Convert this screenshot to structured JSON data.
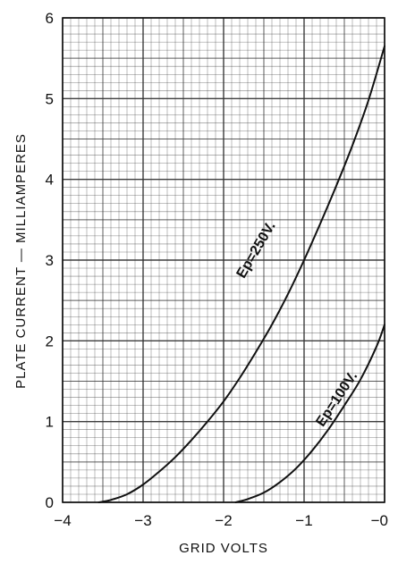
{
  "chart_data": {
    "type": "line",
    "title": "",
    "xlabel": "GRID VOLTS",
    "ylabel": "PLATE CURRENT — MILLIAMPERES",
    "xlim": [
      -4,
      0
    ],
    "ylim": [
      0,
      6
    ],
    "x_ticks": [
      {
        "value": -4,
        "label": "−4"
      },
      {
        "value": -3,
        "label": "−3"
      },
      {
        "value": -2,
        "label": "−2"
      },
      {
        "value": -1,
        "label": "−1"
      },
      {
        "value": 0,
        "label": "−0"
      }
    ],
    "y_ticks": [
      {
        "value": 0,
        "label": "0"
      },
      {
        "value": 1,
        "label": "1"
      },
      {
        "value": 2,
        "label": "2"
      },
      {
        "value": 3,
        "label": "3"
      },
      {
        "value": 4,
        "label": "4"
      },
      {
        "value": 5,
        "label": "5"
      },
      {
        "value": 6,
        "label": "6"
      }
    ],
    "grid": true,
    "grid_minor_divisions": {
      "x": 10,
      "y": 10
    },
    "series": [
      {
        "name": "Ep=250V.",
        "points": [
          [
            -3.55,
            0.0
          ],
          [
            -3.4,
            0.03
          ],
          [
            -3.2,
            0.1
          ],
          [
            -3.0,
            0.22
          ],
          [
            -2.8,
            0.38
          ],
          [
            -2.6,
            0.56
          ],
          [
            -2.4,
            0.77
          ],
          [
            -2.2,
            1.0
          ],
          [
            -2.0,
            1.25
          ],
          [
            -1.8,
            1.54
          ],
          [
            -1.6,
            1.86
          ],
          [
            -1.4,
            2.2
          ],
          [
            -1.2,
            2.58
          ],
          [
            -1.0,
            3.0
          ],
          [
            -0.8,
            3.45
          ],
          [
            -0.6,
            3.92
          ],
          [
            -0.4,
            4.42
          ],
          [
            -0.2,
            4.98
          ],
          [
            0.0,
            5.65
          ]
        ]
      },
      {
        "name": "Ep=100V.",
        "points": [
          [
            -1.85,
            0.0
          ],
          [
            -1.7,
            0.04
          ],
          [
            -1.5,
            0.12
          ],
          [
            -1.3,
            0.25
          ],
          [
            -1.1,
            0.42
          ],
          [
            -0.9,
            0.64
          ],
          [
            -0.7,
            0.9
          ],
          [
            -0.5,
            1.2
          ],
          [
            -0.3,
            1.52
          ],
          [
            -0.1,
            1.93
          ],
          [
            0.0,
            2.2
          ]
        ]
      }
    ],
    "curve_labels": [
      {
        "series": "Ep=250V.",
        "text": "Ep=250V.",
        "x": -1.55,
        "y": 3.1
      },
      {
        "series": "Ep=100V.",
        "text": "Ep=100V.",
        "x": -0.55,
        "y": 1.25
      }
    ],
    "colors": {
      "line": "#111111",
      "grid": "#333333",
      "background": "#ffffff"
    }
  }
}
